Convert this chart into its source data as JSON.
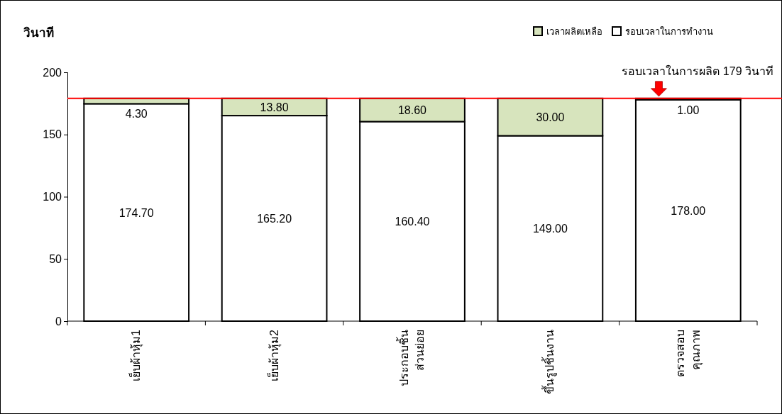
{
  "chart_data": {
    "type": "bar",
    "stacked": true,
    "ylabel": "วินาที",
    "categories": [
      "เย็บผ้าหุ้ม1",
      "เย็บผ้าหุ้ม2",
      "ประกอบชิ้น\nส่วนย่อย",
      "ขึ้นรูปชิ้นงาน",
      "ตรวจสอบ\nคุณภาพ"
    ],
    "series": [
      {
        "name": "รอบเวลาในการทำงาน",
        "color": "#ffffff",
        "values": [
          174.7,
          165.2,
          160.4,
          149.0,
          178.0
        ]
      },
      {
        "name": "เวลาผลิตเหลือ",
        "color": "#d7e4bd",
        "values": [
          4.3,
          13.8,
          18.6,
          30.0,
          1.0
        ]
      }
    ],
    "value_labels": [
      [
        "174.70",
        "165.20",
        "160.40",
        "149.00",
        "178.00"
      ],
      [
        "4.30",
        "13.80",
        "18.60",
        "30.00",
        "1.00"
      ]
    ],
    "ylim": [
      0,
      200
    ],
    "yticks": [
      0,
      50,
      100,
      150,
      200
    ],
    "grid": false,
    "legend": "top right",
    "ref_lines": [
      {
        "axis": "y",
        "value": 179,
        "label": "รอบเวลาในการผลิต  179 วินาที",
        "color": "#ff0000"
      }
    ]
  }
}
